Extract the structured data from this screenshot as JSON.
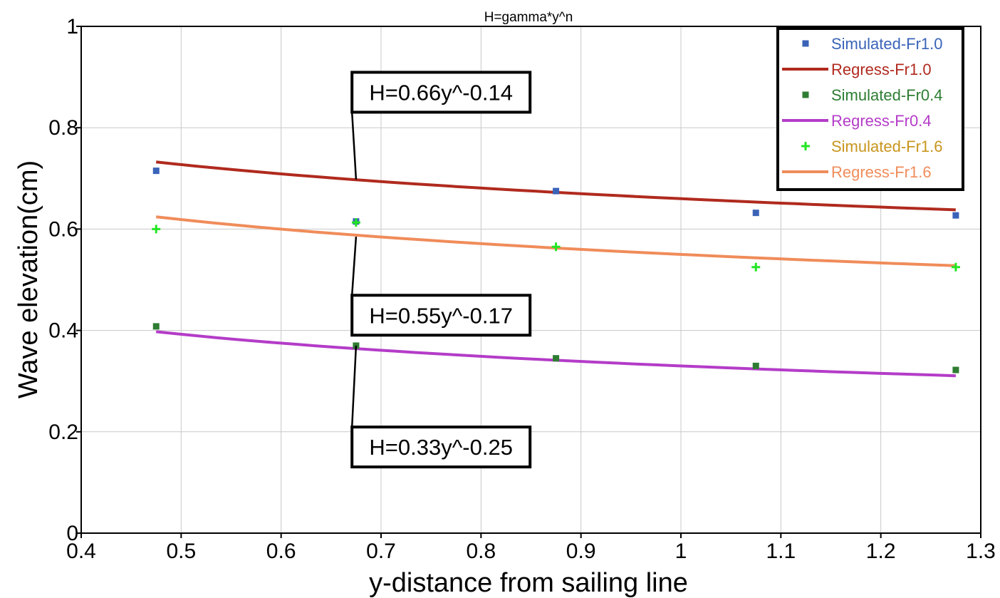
{
  "chart_data": {
    "type": "scatter",
    "title": "H=gamma*y^n",
    "xlabel": "y-distance from sailing line",
    "ylabel": "Wave elevation(cm)",
    "xlim": [
      0.4,
      1.3
    ],
    "ylim": [
      0,
      1
    ],
    "x_ticks": [
      "0.4",
      "0.5",
      "0.6",
      "0.7",
      "0.8",
      "0.9",
      "1",
      "1.1",
      "1.2",
      "1.3"
    ],
    "y_ticks": [
      "0",
      "0.2",
      "0.4",
      "0.6",
      "0.8",
      "1"
    ],
    "grid": true,
    "legend_position": "top-right",
    "series": [
      {
        "name": "Simulated-Fr1.0",
        "kind": "markers",
        "marker": "square",
        "color": "#3a63b8",
        "x": [
          0.475,
          0.675,
          0.875,
          1.075,
          1.275
        ],
        "y": [
          0.715,
          0.615,
          0.675,
          0.632,
          0.627
        ]
      },
      {
        "name": "Regress-Fr1.0",
        "kind": "line",
        "color": "#b02a1e",
        "x_range": [
          0.475,
          1.275
        ],
        "gamma": 0.66,
        "n": -0.14
      },
      {
        "name": "Simulated-Fr0.4",
        "kind": "markers",
        "marker": "square",
        "color": "#2e7d32",
        "x": [
          0.475,
          0.675,
          0.875,
          1.075,
          1.275
        ],
        "y": [
          0.408,
          0.37,
          0.345,
          0.33,
          0.322
        ]
      },
      {
        "name": "Regress-Fr0.4",
        "kind": "line",
        "color": "#b43cc8",
        "x_range": [
          0.475,
          1.275
        ],
        "gamma": 0.33,
        "n": -0.25
      },
      {
        "name": "Simulated-Fr1.6",
        "kind": "markers",
        "marker": "plus",
        "color": "#22e622",
        "x": [
          0.475,
          0.675,
          0.875,
          1.075,
          1.275
        ],
        "y": [
          0.6,
          0.613,
          0.565,
          0.525,
          0.525
        ]
      },
      {
        "name": "Regress-Fr1.6",
        "kind": "line",
        "color": "#f08c5a",
        "x_range": [
          0.475,
          1.275
        ],
        "gamma": 0.55,
        "n": -0.17
      }
    ],
    "legend_text_colors": [
      "#3a63b8",
      "#b02a1e",
      "#2e7d32",
      "#b43cc8",
      "#c8961e",
      "#f08c5a"
    ],
    "annotations": [
      {
        "text": "H=0.66y^-0.14",
        "point": [
          0.675,
          0.698
        ],
        "label_pos": [
          0.76,
          0.87
        ]
      },
      {
        "text": "H=0.55y^-0.17",
        "point": [
          0.675,
          0.585
        ],
        "label_pos": [
          0.76,
          0.43
        ]
      },
      {
        "text": "H=0.33y^-0.25",
        "point": [
          0.675,
          0.37
        ],
        "label_pos": [
          0.76,
          0.17
        ]
      }
    ]
  }
}
